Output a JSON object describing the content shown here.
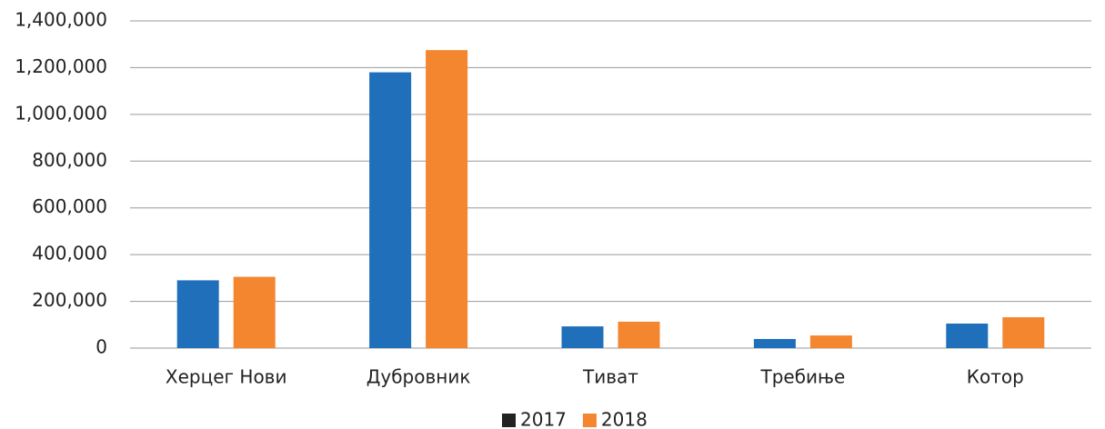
{
  "chart_data": {
    "type": "bar",
    "categories": [
      "Херцег Нови",
      "Дубровник",
      "Тиват",
      "Требиње",
      "Котор"
    ],
    "series": [
      {
        "name": "2017",
        "color": "#1f6fba",
        "legend_color": "#222222",
        "values": [
          290000,
          1180000,
          93000,
          39000,
          105000
        ]
      },
      {
        "name": "2018",
        "color": "#f3862f",
        "legend_color": "#f3862f",
        "values": [
          305000,
          1275000,
          113000,
          54000,
          132000
        ]
      }
    ],
    "ylim": [
      0,
      1400000
    ],
    "yticks": [
      0,
      {
        "value": 200000,
        "label": "200,000"
      },
      {
        "value": 400000,
        "label": "400,000"
      },
      {
        "value": 600000,
        "label": "600,000"
      },
      {
        "value": 800000,
        "label": "800,000"
      },
      {
        "value": 1000000,
        "label": "1,000,000"
      },
      {
        "value": 1200000,
        "label": "1,200,000"
      },
      {
        "value": 1400000,
        "label": "1,400,000"
      }
    ],
    "grid": true,
    "legend": "bottom"
  }
}
